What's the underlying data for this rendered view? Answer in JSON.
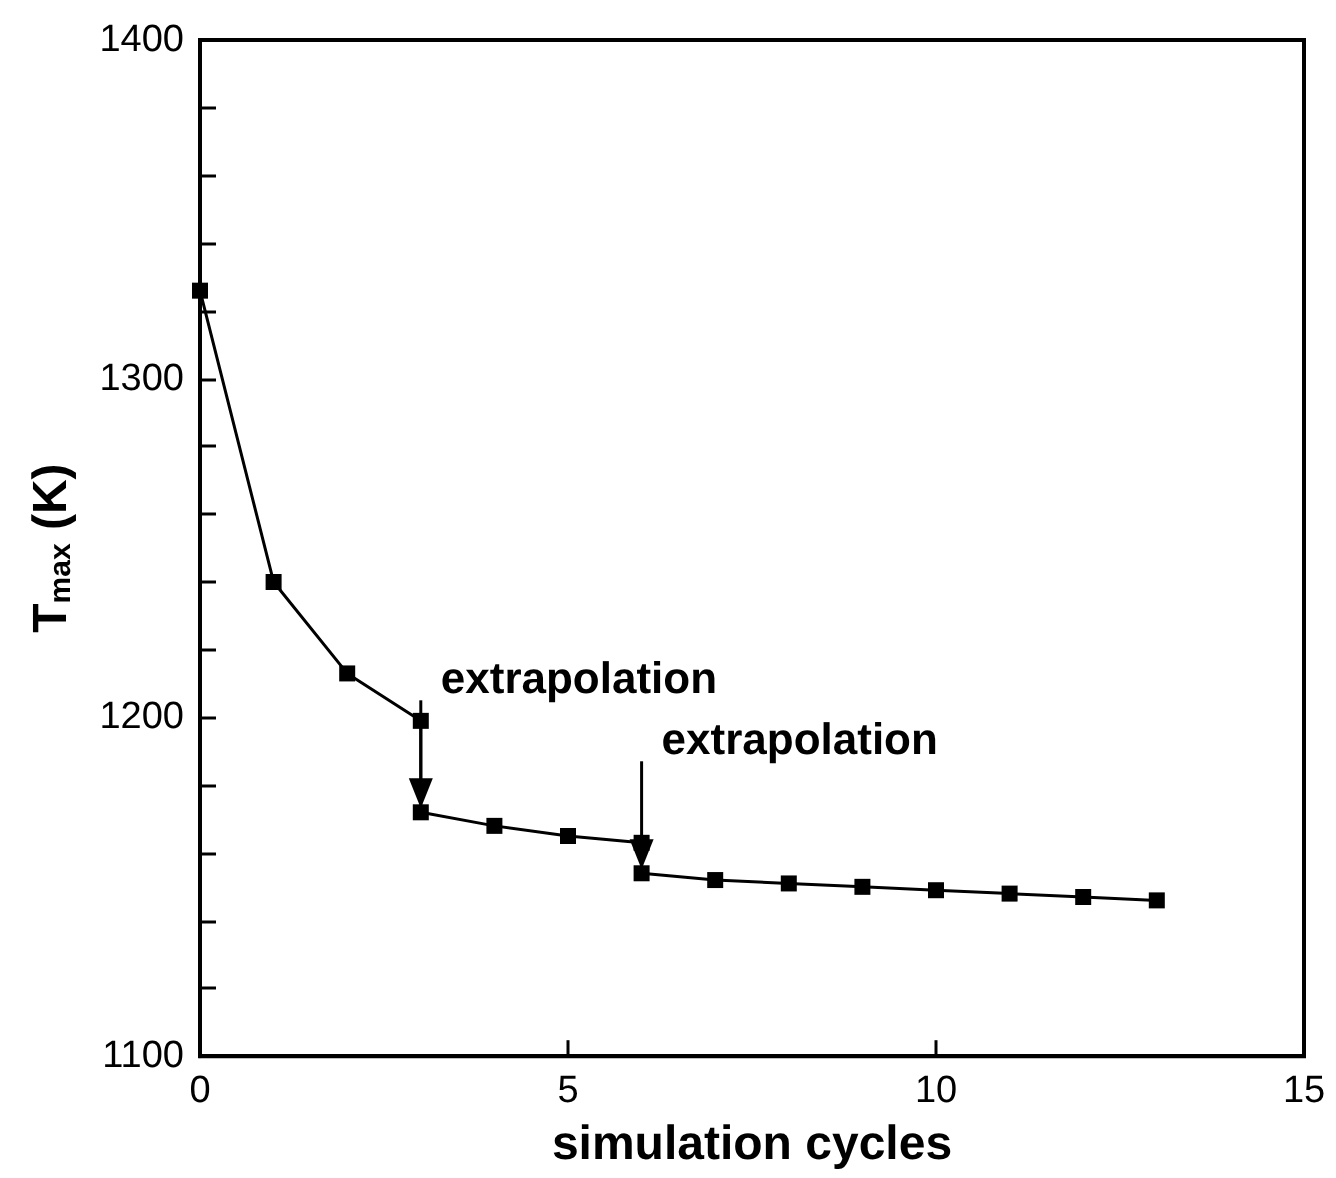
{
  "chart_data": {
    "type": "line",
    "xlabel": "simulation cycles",
    "ylabel": "T$_{max}$ (K)",
    "series": [
      {
        "color": "#000000",
        "x": [
          0,
          1,
          2,
          3,
          3,
          4,
          5,
          6,
          6,
          7,
          8,
          9,
          10,
          11,
          12,
          13
        ],
        "values": [
          1326,
          1240,
          1213,
          1199,
          1172,
          1168,
          1165,
          1163,
          1154,
          1152,
          1151,
          1150,
          1149,
          1148,
          1147,
          1146
        ]
      }
    ],
    "xlim": [
      0,
      15
    ],
    "xticks": [
      0,
      5,
      10,
      15
    ],
    "ylim": [
      1100,
      1400
    ],
    "yticks": [
      1100,
      {
        "value": 1120,
        "label": null
      },
      {
        "value": 1140,
        "label": null
      },
      {
        "value": 1160,
        "label": null
      },
      {
        "value": 1180,
        "label": null
      },
      1200,
      {
        "value": 1220,
        "label": null
      },
      {
        "value": 1240,
        "label": null
      },
      {
        "value": 1260,
        "label": null
      },
      {
        "value": 1280,
        "label": null
      },
      1300,
      {
        "value": 1320,
        "label": null
      },
      {
        "value": 1340,
        "label": null
      },
      {
        "value": 1360,
        "label": null
      },
      {
        "value": 1380,
        "label": null
      },
      1400
    ],
    "annotations": [
      {
        "text": "extrapolation",
        "x": 3,
        "y": 1172
      },
      {
        "text": "extrapolation",
        "x": 6,
        "y": 1154
      }
    ],
    "marker": "square",
    "line_style": "solid",
    "grid": false
  }
}
